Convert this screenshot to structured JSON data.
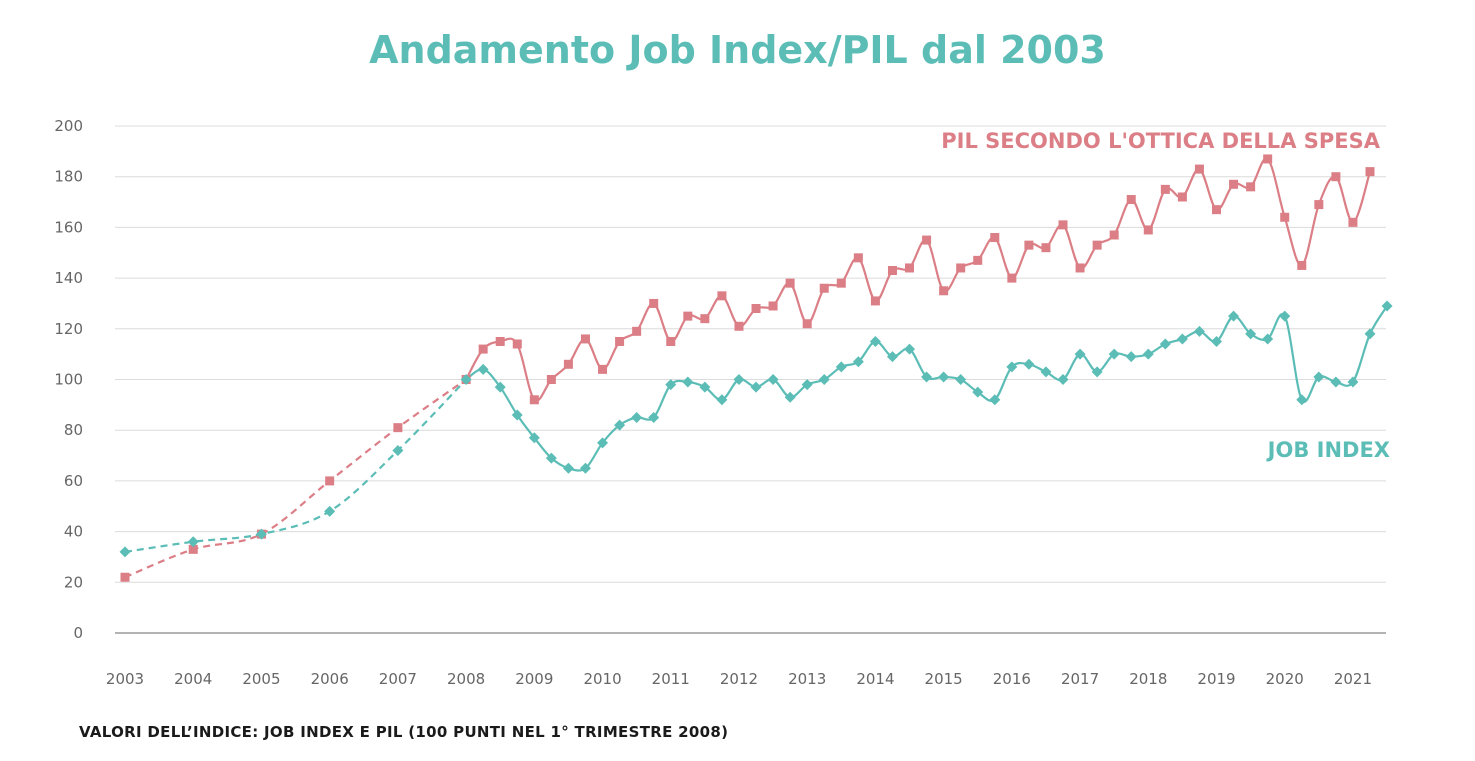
{
  "chart_data": {
    "type": "line",
    "title": "Andamento Job Index/PIL dal 2003",
    "footnote": "VALORI DELL’INDICE: JOB INDEX E PIL (100 PUNTI NEL 1° TRIMESTRE 2008)",
    "y_ticks": [
      "0",
      "20",
      "40",
      "60",
      "80",
      "100",
      "120",
      "140",
      "160",
      "180",
      "200"
    ],
    "ylim": [
      0,
      200
    ],
    "x_ticks": [
      "2003",
      "2004",
      "2005",
      "2006",
      "2007",
      "2008",
      "2009",
      "2010",
      "2011",
      "2012",
      "2013",
      "2014",
      "2015",
      "2016",
      "2017",
      "2018",
      "2019",
      "2020",
      "2021"
    ],
    "xlim": [
      2003,
      2021.25
    ],
    "grid": true,
    "series": [
      {
        "name": "PIL SECONDO L'OTTICA DELLA SPESA",
        "color": "#db7e86",
        "marker": "square",
        "annual": [
          [
            2003,
            22
          ],
          [
            2004,
            33
          ],
          [
            2005,
            39
          ],
          [
            2006,
            60
          ],
          [
            2007,
            81
          ],
          [
            2008,
            100
          ]
        ],
        "quarterly": [
          [
            2008,
            100
          ],
          [
            2008.25,
            112
          ],
          [
            2008.5,
            115
          ],
          [
            2008.75,
            114
          ],
          [
            2009,
            92
          ],
          [
            2009.25,
            100
          ],
          [
            2009.5,
            106
          ],
          [
            2009.75,
            116
          ],
          [
            2010,
            104
          ],
          [
            2010.25,
            115
          ],
          [
            2010.5,
            119
          ],
          [
            2010.75,
            130
          ],
          [
            2011,
            115
          ],
          [
            2011.25,
            125
          ],
          [
            2011.5,
            124
          ],
          [
            2011.75,
            133
          ],
          [
            2012,
            121
          ],
          [
            2012.25,
            128
          ],
          [
            2012.5,
            129
          ],
          [
            2012.75,
            138
          ],
          [
            2013,
            122
          ],
          [
            2013.25,
            136
          ],
          [
            2013.5,
            138
          ],
          [
            2013.75,
            148
          ],
          [
            2014,
            131
          ],
          [
            2014.25,
            143
          ],
          [
            2014.5,
            144
          ],
          [
            2014.75,
            155
          ],
          [
            2015,
            135
          ],
          [
            2015.25,
            144
          ],
          [
            2015.5,
            147
          ],
          [
            2015.75,
            156
          ],
          [
            2016,
            140
          ],
          [
            2016.25,
            153
          ],
          [
            2016.5,
            152
          ],
          [
            2016.75,
            161
          ],
          [
            2017,
            144
          ],
          [
            2017.25,
            153
          ],
          [
            2017.5,
            157
          ],
          [
            2017.75,
            171
          ],
          [
            2018,
            159
          ],
          [
            2018.25,
            175
          ],
          [
            2018.5,
            172
          ],
          [
            2018.75,
            183
          ],
          [
            2019,
            167
          ],
          [
            2019.25,
            177
          ],
          [
            2019.5,
            176
          ],
          [
            2019.75,
            187
          ],
          [
            2020,
            164
          ],
          [
            2020.25,
            145
          ],
          [
            2020.5,
            169
          ],
          [
            2020.75,
            180
          ],
          [
            2021,
            162
          ],
          [
            2021.25,
            182
          ]
        ]
      },
      {
        "name": "JOB INDEX",
        "color": "#5bbdb6",
        "marker": "diamond",
        "annual": [
          [
            2003,
            32
          ],
          [
            2004,
            36
          ],
          [
            2005,
            39
          ],
          [
            2006,
            48
          ],
          [
            2007,
            72
          ],
          [
            2008,
            100
          ]
        ],
        "quarterly": [
          [
            2008,
            100
          ],
          [
            2008.25,
            104
          ],
          [
            2008.5,
            97
          ],
          [
            2008.75,
            86
          ],
          [
            2009,
            77
          ],
          [
            2009.25,
            69
          ],
          [
            2009.5,
            65
          ],
          [
            2009.75,
            65
          ],
          [
            2010,
            75
          ],
          [
            2010.25,
            82
          ],
          [
            2010.5,
            85
          ],
          [
            2010.75,
            85
          ],
          [
            2011,
            98
          ],
          [
            2011.25,
            99
          ],
          [
            2011.5,
            97
          ],
          [
            2011.75,
            92
          ],
          [
            2012,
            100
          ],
          [
            2012.25,
            97
          ],
          [
            2012.5,
            100
          ],
          [
            2012.75,
            93
          ],
          [
            2013,
            98
          ],
          [
            2013.25,
            100
          ],
          [
            2013.5,
            105
          ],
          [
            2013.75,
            107
          ],
          [
            2014,
            115
          ],
          [
            2014.25,
            109
          ],
          [
            2014.5,
            112
          ],
          [
            2014.75,
            101
          ],
          [
            2015,
            101
          ],
          [
            2015.25,
            100
          ],
          [
            2015.5,
            95
          ],
          [
            2015.75,
            92
          ],
          [
            2016,
            105
          ],
          [
            2016.25,
            106
          ],
          [
            2016.5,
            103
          ],
          [
            2016.75,
            100
          ],
          [
            2017,
            110
          ],
          [
            2017.25,
            103
          ],
          [
            2017.5,
            110
          ],
          [
            2017.75,
            109
          ],
          [
            2018,
            110
          ],
          [
            2018.25,
            114
          ],
          [
            2018.5,
            116
          ],
          [
            2018.75,
            119
          ],
          [
            2019,
            115
          ],
          [
            2019.25,
            125
          ],
          [
            2019.5,
            118
          ],
          [
            2019.75,
            116
          ],
          [
            2020,
            125
          ],
          [
            2020.25,
            92
          ],
          [
            2020.5,
            101
          ],
          [
            2020.75,
            99
          ],
          [
            2021,
            99
          ],
          [
            2021.25,
            118
          ],
          [
            2021.5,
            129
          ]
        ]
      }
    ]
  }
}
